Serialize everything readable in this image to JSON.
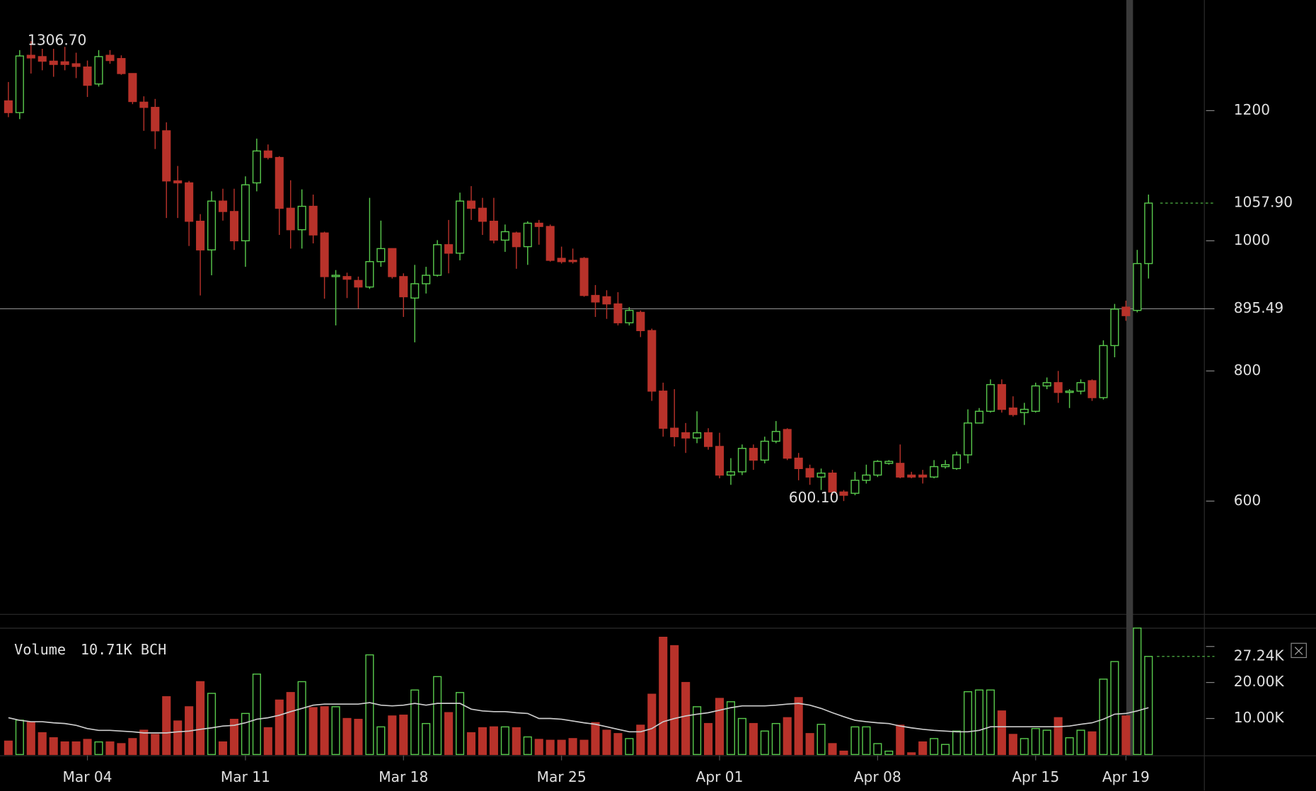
{
  "chart_data": {
    "type": "candlestick",
    "categories": [
      null,
      null,
      null,
      null,
      null,
      null,
      null,
      "Mar 04",
      null,
      null,
      null,
      null,
      null,
      null,
      null,
      null,
      null,
      null,
      null,
      null,
      null,
      "Mar 11",
      null,
      null,
      null,
      null,
      null,
      null,
      null,
      null,
      null,
      null,
      null,
      null,
      null,
      "Mar 18",
      null,
      null,
      null,
      null,
      null,
      null,
      null,
      null,
      null,
      null,
      null,
      null,
      null,
      "Mar 25",
      null,
      null,
      null,
      null,
      null,
      null,
      null,
      null,
      null,
      null,
      null,
      null,
      null,
      "Apr 01",
      null,
      null,
      null,
      null,
      null,
      null,
      null,
      null,
      null,
      null,
      null,
      null,
      null,
      "Apr 08",
      null,
      null,
      null,
      null,
      null,
      null,
      null,
      null,
      null,
      null,
      null,
      null,
      null,
      "Apr 15",
      null,
      null,
      null,
      null,
      null,
      null,
      null,
      "Apr 19",
      null,
      null
    ],
    "open": [
      1215,
      1197,
      1285,
      1283,
      1276,
      1275,
      1272,
      1267,
      1241,
      1285,
      1280,
      1257,
      1213,
      1205,
      1169,
      1092,
      1089,
      1030,
      986,
      1061,
      1045,
      1000,
      1089,
      1138,
      1128,
      1050,
      1017,
      1053,
      1012,
      945,
      945,
      939,
      929,
      968,
      988,
      945,
      912,
      934,
      947,
      994,
      981,
      1061,
      1050,
      1030,
      1001,
      1012,
      991,
      1027,
      1022,
      973,
      970,
      973,
      916,
      914,
      903,
      874,
      890,
      862,
      769,
      712,
      705,
      697,
      705,
      684,
      640,
      645,
      681,
      663,
      692,
      710,
      666,
      650,
      637,
      643,
      614,
      612,
      632,
      640,
      658,
      658,
      640,
      640,
      637,
      653,
      650,
      671,
      720,
      738,
      779,
      743,
      736,
      738,
      777,
      782,
      767,
      769,
      785,
      759,
      839,
      898,
      893,
      965
    ],
    "high": [
      1244,
      1293,
      1306.7,
      1295,
      1295,
      1298,
      1289,
      1277,
      1293,
      1293,
      1285,
      1257,
      1222,
      1218,
      1182,
      1115,
      1092,
      1041,
      1076,
      1080,
      1080,
      1099,
      1157,
      1148,
      1130,
      1093,
      1079,
      1071,
      1014,
      955,
      951,
      945,
      1066,
      1031,
      988,
      950,
      963,
      960,
      1001,
      1032,
      1074,
      1084,
      1066,
      1066,
      1025,
      1014,
      1030,
      1032,
      1025,
      991,
      988,
      975,
      932,
      924,
      921,
      898,
      893,
      865,
      782,
      772,
      720,
      738,
      712,
      705,
      666,
      687,
      687,
      699,
      723,
      712,
      674,
      656,
      650,
      648,
      617,
      645,
      656,
      663,
      663,
      687,
      645,
      648,
      663,
      663,
      676,
      741,
      743,
      787,
      787,
      761,
      751,
      782,
      790,
      800,
      772,
      787,
      787,
      847,
      903,
      908,
      986,
      1071
    ],
    "low": [
      1190,
      1187,
      1257,
      1262,
      1252,
      1262,
      1250,
      1221,
      1237,
      1272,
      1255,
      1210,
      1169,
      1141,
      1035,
      1035,
      992,
      916,
      947,
      1031,
      986,
      960,
      1076,
      1125,
      1009,
      988,
      988,
      996,
      911,
      870,
      912,
      896,
      926,
      960,
      942,
      883,
      844,
      919,
      945,
      950,
      970,
      1032,
      1009,
      996,
      983,
      957,
      963,
      994,
      968,
      965,
      965,
      914,
      883,
      880,
      870,
      870,
      852,
      754,
      699,
      684,
      674,
      689,
      679,
      635,
      625,
      640,
      648,
      658,
      689,
      663,
      632,
      625,
      617,
      609,
      600.1,
      609,
      627,
      637,
      656,
      635,
      635,
      627,
      635,
      650,
      648,
      658,
      725,
      736,
      736,
      730,
      717,
      736,
      772,
      751,
      743,
      764,
      754,
      756,
      821,
      877,
      890,
      942
    ],
    "close": [
      1197,
      1284,
      1281,
      1276,
      1271,
      1271,
      1268,
      1239,
      1283,
      1277,
      1257,
      1214,
      1205,
      1169,
      1092,
      1089,
      1030,
      986,
      1061,
      1045,
      1000,
      1086,
      1138,
      1128,
      1050,
      1017,
      1053,
      1009,
      945,
      947,
      941,
      929,
      968,
      988,
      945,
      914,
      934,
      947,
      994,
      981,
      1061,
      1050,
      1030,
      1001,
      1014,
      991,
      1027,
      1022,
      970,
      968,
      968,
      916,
      906,
      903,
      874,
      893,
      862,
      769,
      712,
      699,
      697,
      705,
      684,
      640,
      645,
      681,
      663,
      692,
      707,
      666,
      650,
      637,
      643,
      614,
      609,
      632,
      640,
      661,
      661,
      637,
      637,
      637,
      653,
      656,
      671,
      720,
      738,
      779,
      741,
      733,
      741,
      777,
      782,
      767,
      769,
      782,
      759,
      839,
      895,
      885,
      965,
      1057.9
    ],
    "up_color": "#58c84c",
    "down_color": "#b8322a",
    "ylim": [
      426,
      1370
    ],
    "yticks": [
      600,
      800,
      1000,
      1200
    ],
    "high_label": "1306.70",
    "low_label": "600.10",
    "last_label": "1057.90",
    "crosshair": {
      "value": 895.49,
      "label": "895.49"
    },
    "volume": {
      "title": "Volume",
      "readout": "10.71K BCH",
      "values": [
        3720,
        9530,
        9070,
        6050,
        4650,
        3490,
        3490,
        4190,
        3490,
        3490,
        3020,
        4420,
        6740,
        5580,
        16050,
        9300,
        13260,
        20230,
        16980,
        3490,
        9770,
        11400,
        22330,
        7440,
        15120,
        17210,
        20230,
        13020,
        13260,
        13260,
        10000,
        9770,
        27670,
        7670,
        10700,
        10930,
        17910,
        8600,
        21630,
        11630,
        17210,
        6050,
        7440,
        7670,
        7670,
        7440,
        4880,
        4190,
        3950,
        3950,
        4420,
        3950,
        8840,
        6740,
        5810,
        4420,
        8140,
        16740,
        32560,
        30230,
        20000,
        13260,
        8600,
        15580,
        14650,
        10000,
        8600,
        6510,
        8600,
        10230,
        15810,
        5810,
        8370,
        3020,
        930,
        7670,
        7670,
        3020,
        930,
        8140,
        470,
        3490,
        4420,
        2790,
        6510,
        17440,
        17910,
        17910,
        12090,
        5580,
        4420,
        7210,
        6740,
        10230,
        4650,
        6740,
        6280,
        20930,
        25810,
        10710,
        35120,
        27240
      ],
      "ma": [
        10200,
        9500,
        9100,
        9100,
        8800,
        8600,
        8100,
        7200,
        6700,
        6700,
        6500,
        6300,
        6000,
        6000,
        6000,
        6300,
        6500,
        7000,
        7400,
        7900,
        8100,
        8800,
        9800,
        10200,
        10900,
        11900,
        12800,
        13700,
        14000,
        14000,
        14000,
        14000,
        14400,
        13700,
        13500,
        13700,
        14200,
        13700,
        14200,
        14200,
        14200,
        12600,
        12100,
        11900,
        11900,
        11600,
        11400,
        10000,
        10000,
        9800,
        9300,
        8800,
        8400,
        7700,
        7000,
        6300,
        6300,
        7200,
        9100,
        10000,
        10700,
        11200,
        11600,
        12300,
        13000,
        13500,
        13500,
        13500,
        13700,
        14000,
        14200,
        13700,
        12800,
        11600,
        10500,
        9500,
        9100,
        8800,
        8600,
        7900,
        7400,
        7000,
        6700,
        6500,
        6300,
        6300,
        6700,
        7700,
        7700,
        7700,
        7700,
        7700,
        7700,
        7700,
        7900,
        8400,
        8800,
        9800,
        11200,
        11400,
        12100,
        13000
      ],
      "ma_color": "#cccccc",
      "ylim": [
        0,
        35200
      ],
      "yticks": [
        {
          "value": 10000,
          "label": "10.00K"
        },
        {
          "value": 20000,
          "label": "20.00K"
        },
        {
          "value": 30000,
          "label": null
        }
      ],
      "last_label": "27.24K"
    }
  }
}
